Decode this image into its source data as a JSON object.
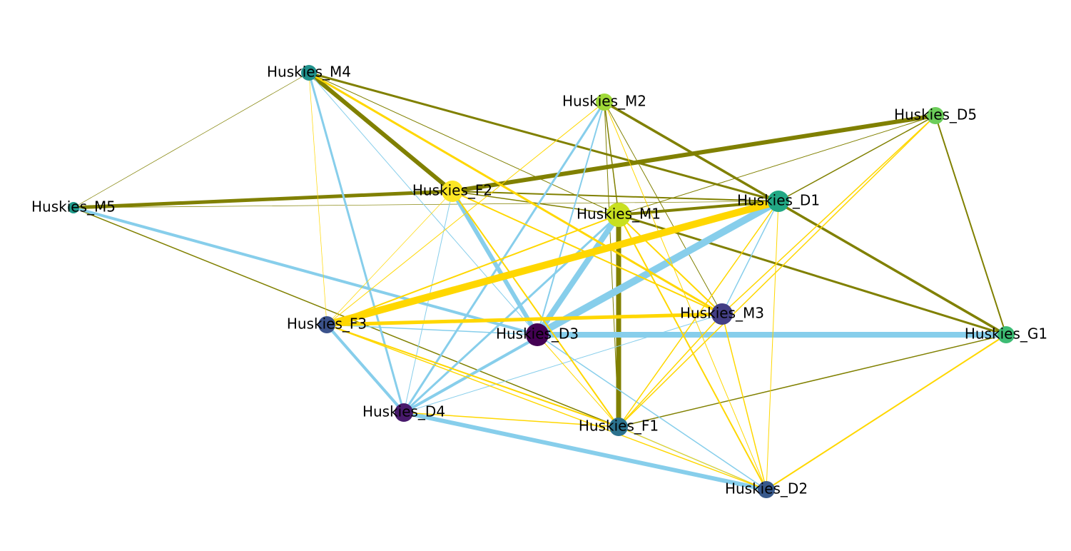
{
  "nodes": [
    {
      "label": "Huskies_M4"
    },
    {
      "label": "Huskies_M2"
    },
    {
      "label": "Huskies_D5"
    },
    {
      "label": "Huskies_M5"
    },
    {
      "label": "Huskies_F2"
    },
    {
      "label": "Huskies_M1"
    },
    {
      "label": "Huskies_D1"
    },
    {
      "label": "Huskies_F3"
    },
    {
      "label": "Huskies_D3"
    },
    {
      "label": "Huskies_M3"
    },
    {
      "label": "Huskies_G1"
    },
    {
      "label": "Huskies_D4"
    },
    {
      "label": "Huskies_F1"
    },
    {
      "label": "Huskies_D2"
    }
  ]
}
